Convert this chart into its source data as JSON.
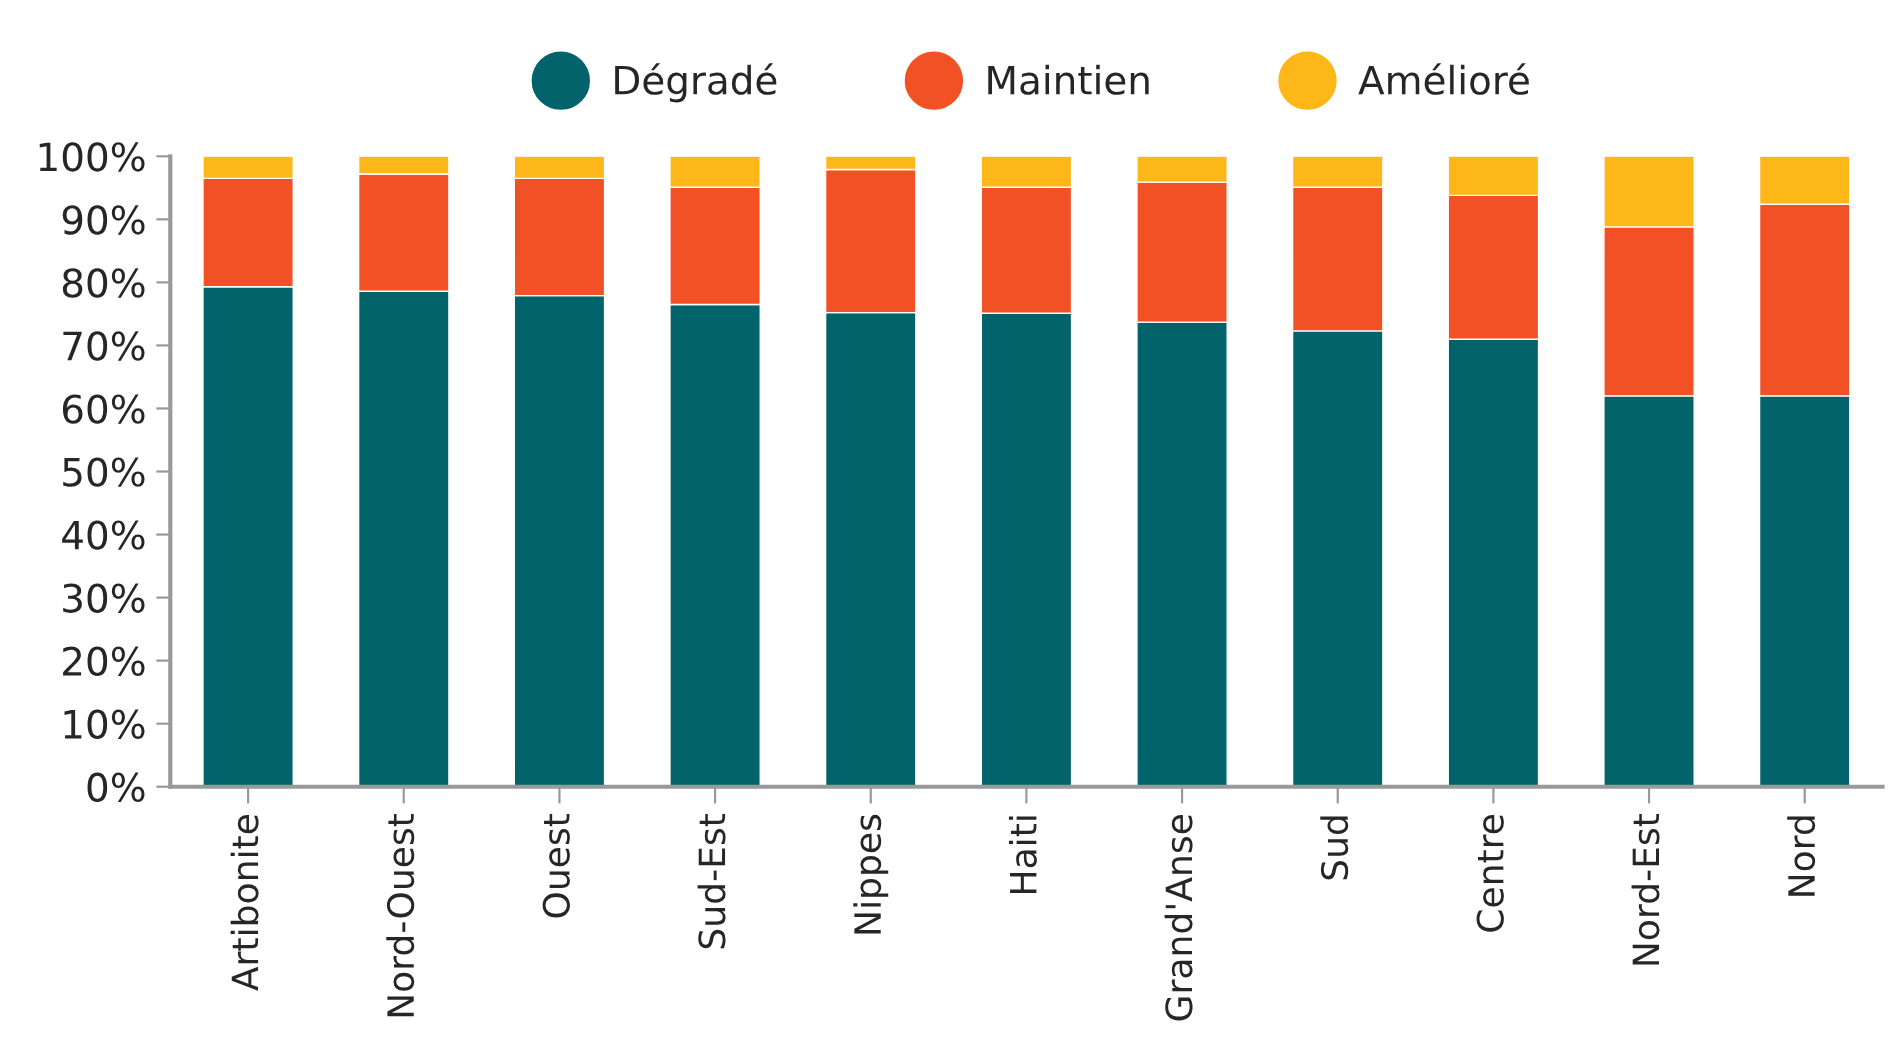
{
  "chart_data": {
    "type": "bar",
    "stacked": true,
    "categories": [
      "Artibonite",
      "Nord-Ouest",
      "Ouest",
      "Sud-Est",
      "Nippes",
      "Haiti",
      "Grand'Anse",
      "Sud",
      "Centre",
      "Nord-Est",
      "Nord"
    ],
    "series": [
      {
        "name": "Dégradé",
        "color": "#02636a",
        "values": [
          79.3,
          78.6,
          77.9,
          76.5,
          75.2,
          75.1,
          73.7,
          72.3,
          71.0,
          62.0,
          62.0
        ]
      },
      {
        "name": "Maintien",
        "color": "#f15125",
        "values": [
          17.2,
          18.6,
          18.6,
          18.6,
          22.7,
          20.0,
          22.2,
          22.8,
          22.8,
          26.8,
          30.4
        ]
      },
      {
        "name": "Amélioré",
        "color": "#fdb719",
        "values": [
          3.5,
          2.8,
          3.5,
          4.9,
          2.1,
          4.9,
          4.1,
          4.9,
          6.2,
          11.2,
          7.6
        ]
      }
    ],
    "ylim": [
      0,
      100
    ],
    "yticks": [
      {
        "value": 0,
        "label": "0%"
      },
      {
        "value": 10,
        "label": "10%"
      },
      {
        "value": 20,
        "label": "20%"
      },
      {
        "value": 30,
        "label": "30%"
      },
      {
        "value": 40,
        "label": "40%"
      },
      {
        "value": 50,
        "label": "50%"
      },
      {
        "value": 60,
        "label": "60%"
      },
      {
        "value": 70,
        "label": "70%"
      },
      {
        "value": 80,
        "label": "80%"
      },
      {
        "value": 90,
        "label": "90%"
      },
      {
        "value": 100,
        "label": "100%"
      }
    ],
    "grid": false,
    "legend": "top"
  }
}
